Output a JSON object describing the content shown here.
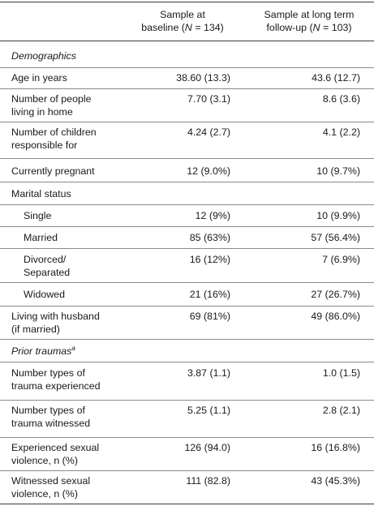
{
  "header": {
    "col1_line1": "Sample at",
    "col1_line2_prefix": "baseline (",
    "col1_n": "N",
    "col1_line2_suffix": " = 134)",
    "col2_line1": "Sample at long term",
    "col2_line2_prefix": "follow-up (",
    "col2_n": "N",
    "col2_line2_suffix": " = 103)"
  },
  "sections": {
    "demographics": "Demographics",
    "prior_traumas": "Prior traumas",
    "prior_traumas_sup": "a"
  },
  "rows": [
    {
      "label": [
        "Age in years"
      ],
      "baseline": "38.60 (13.3)",
      "followup": "43.6 (12.7)"
    },
    {
      "label": [
        "Number of people",
        "living in home"
      ],
      "baseline": "7.70 (3.1)",
      "followup": "8.6 (3.6)"
    },
    {
      "label": [
        "Number of children",
        "responsible for"
      ],
      "baseline": "4.24 (2.7)",
      "followup": "4.1 (2.2)"
    },
    {
      "label": [
        "Currently pregnant"
      ],
      "baseline": "12 (9.0%)",
      "followup": "10 (9.7%)"
    },
    {
      "label": [
        "Marital status"
      ],
      "baseline": "",
      "followup": ""
    },
    {
      "label": [
        "Single"
      ],
      "baseline": "12 (9%)",
      "followup": "10 (9.9%)"
    },
    {
      "label": [
        "Married"
      ],
      "baseline": "85 (63%)",
      "followup": "57 (56.4%)"
    },
    {
      "label": [
        "Divorced/",
        "Separated"
      ],
      "baseline": "16 (12%)",
      "followup": "7 (6.9%)"
    },
    {
      "label": [
        "Widowed"
      ],
      "baseline": "21 (16%)",
      "followup": "27 (26.7%)"
    },
    {
      "label": [
        "Living with husband",
        "(if married)"
      ],
      "baseline": "69 (81%)",
      "followup": "49 (86.0%)"
    },
    {
      "label": [
        "Number types of",
        "trauma experienced"
      ],
      "baseline": "3.87 (1.1)",
      "followup": "1.0 (1.5)"
    },
    {
      "label": [
        "Number types of",
        "trauma witnessed"
      ],
      "baseline": "5.25 (1.1)",
      "followup": "2.8 (2.1)"
    },
    {
      "label": [
        "Experienced sexual",
        "violence, n (%)"
      ],
      "baseline": "126 (94.0)",
      "followup": "16 (16.8%)"
    },
    {
      "label": [
        "Witnessed sexual",
        "violence, n (%)"
      ],
      "baseline": "111 (82.8)",
      "followup": "43 (45.3%)"
    }
  ]
}
